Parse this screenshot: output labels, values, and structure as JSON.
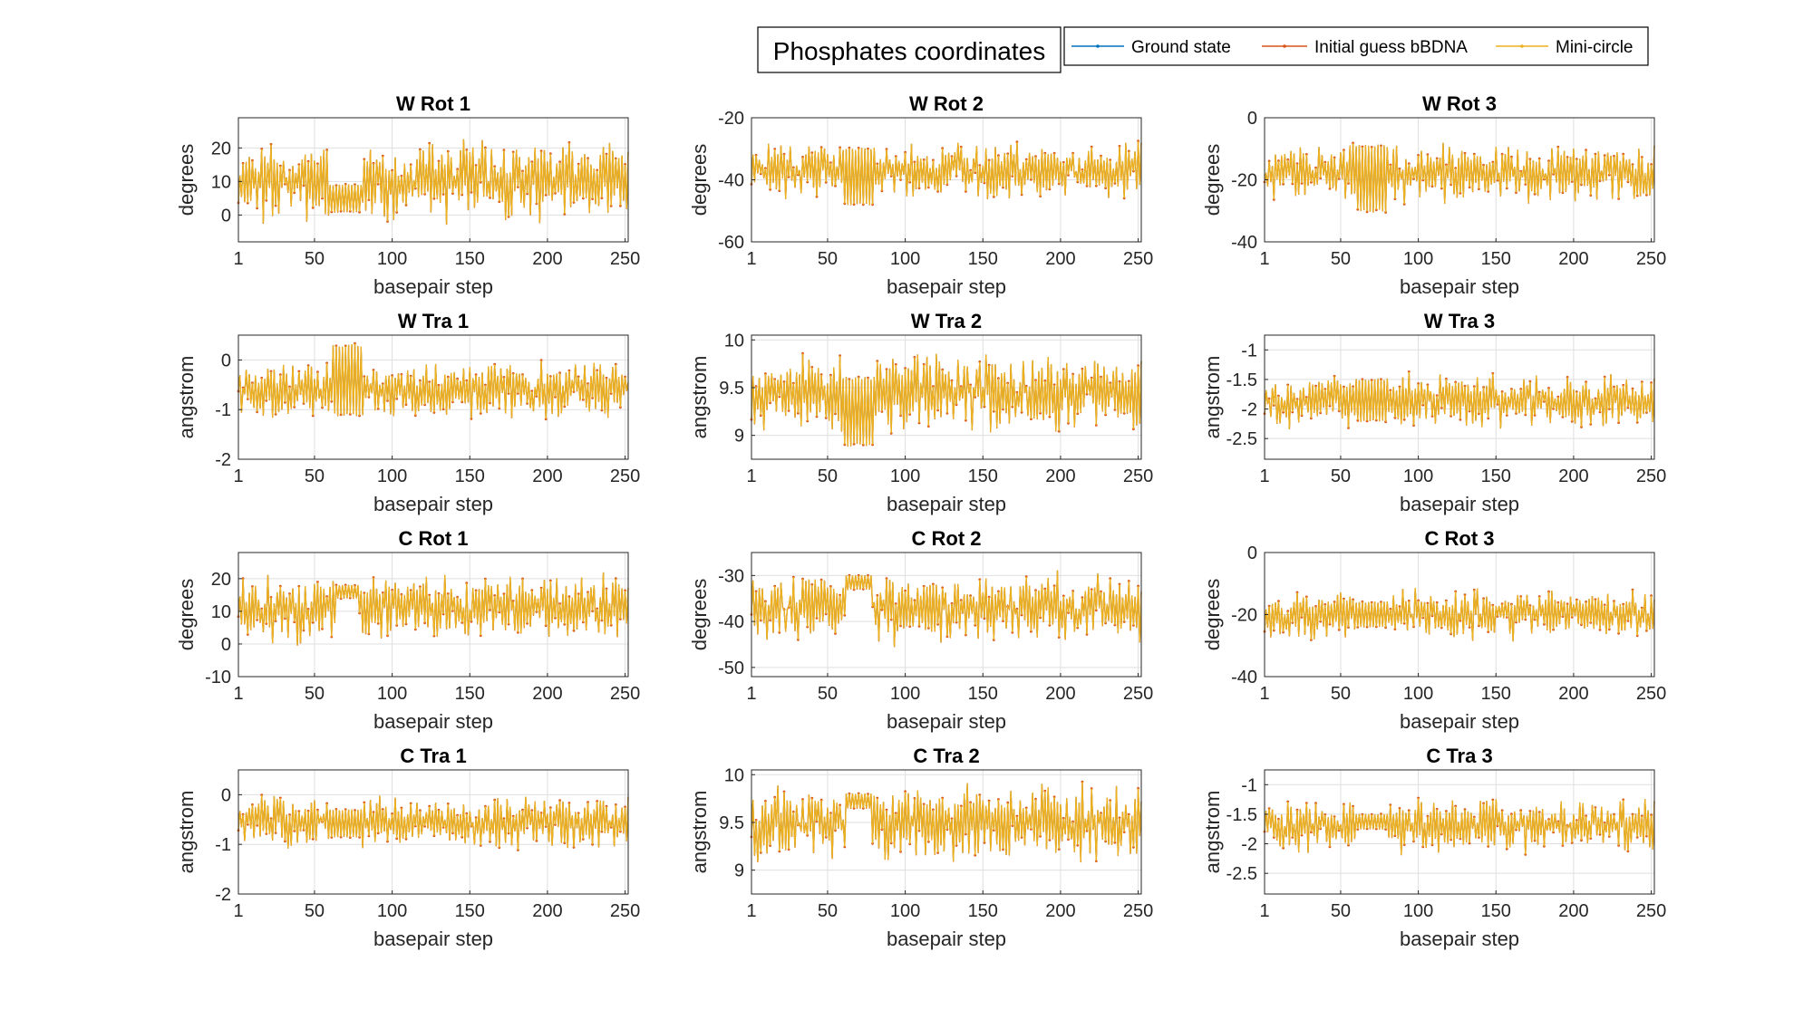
{
  "figure": {
    "suptitle": "Phosphates coordinates",
    "legend": [
      {
        "name": "Ground state",
        "color": "#0072BD"
      },
      {
        "name": "Initial guess bBDNA",
        "color": "#D95319"
      },
      {
        "name": "Mini-circle",
        "color": "#EDB120"
      }
    ]
  },
  "chart_data": [
    {
      "type": "line",
      "title": "W Rot 1",
      "xlabel": "basepair step",
      "ylabel": "degrees",
      "xlim": [
        1,
        252
      ],
      "ylim": [
        -8,
        29
      ],
      "xticks": [
        1,
        50,
        100,
        150,
        200,
        250
      ],
      "yticks": [
        0,
        10,
        20
      ],
      "grid": true,
      "signal": {
        "center": 10,
        "amplitude": 9,
        "seed": 11,
        "flat_region": [
          60,
          80
        ],
        "flat_low": 1,
        "flat_high": 9
      },
      "series": [
        {
          "name": "Ground state"
        },
        {
          "name": "Initial guess bBDNA"
        },
        {
          "name": "Mini-circle"
        }
      ]
    },
    {
      "type": "line",
      "title": "W Rot 2",
      "xlabel": "basepair step",
      "ylabel": "degrees",
      "xlim": [
        1,
        252
      ],
      "ylim": [
        -60,
        -20
      ],
      "xticks": [
        1,
        50,
        100,
        150,
        200,
        250
      ],
      "yticks": [
        -60,
        -40,
        -20
      ],
      "grid": true,
      "signal": {
        "center": -37,
        "amplitude": 7,
        "seed": 23,
        "flat_region": [
          60,
          80
        ],
        "flat_low": -48,
        "flat_high": -30
      },
      "series": [
        {
          "name": "Ground state"
        },
        {
          "name": "Initial guess bBDNA"
        },
        {
          "name": "Mini-circle"
        }
      ]
    },
    {
      "type": "line",
      "title": "W Rot 3",
      "xlabel": "basepair step",
      "ylabel": "degrees",
      "xlim": [
        1,
        252
      ],
      "ylim": [
        -40,
        0
      ],
      "xticks": [
        1,
        50,
        100,
        150,
        200,
        250
      ],
      "yticks": [
        -40,
        -20,
        0
      ],
      "grid": true,
      "signal": {
        "center": -18,
        "amplitude": 7,
        "seed": 37,
        "flat_region": [
          60,
          80
        ],
        "flat_low": -30,
        "flat_high": -9
      },
      "series": [
        {
          "name": "Ground state"
        },
        {
          "name": "Initial guess bBDNA"
        },
        {
          "name": "Mini-circle"
        }
      ]
    },
    {
      "type": "line",
      "title": "W Tra 1",
      "xlabel": "basepair step",
      "ylabel": "angstrom",
      "xlim": [
        1,
        252
      ],
      "ylim": [
        -2,
        0.5
      ],
      "xticks": [
        1,
        50,
        100,
        150,
        200,
        250
      ],
      "yticks": [
        -2,
        -1,
        0
      ],
      "grid": true,
      "signal": {
        "center": -0.6,
        "amplitude": 0.45,
        "seed": 41,
        "flat_region": [
          62,
          80
        ],
        "flat_low": -1.1,
        "flat_high": 0.3
      },
      "series": [
        {
          "name": "Ground state"
        },
        {
          "name": "Initial guess bBDNA"
        },
        {
          "name": "Mini-circle"
        }
      ]
    },
    {
      "type": "line",
      "title": "W Tra 2",
      "xlabel": "basepair step",
      "ylabel": "angstrom",
      "xlim": [
        1,
        252
      ],
      "ylim": [
        8.75,
        10.05
      ],
      "xticks": [
        1,
        50,
        100,
        150,
        200,
        250
      ],
      "yticks": [
        9,
        9.5,
        10
      ],
      "grid": true,
      "signal": {
        "center": 9.45,
        "amplitude": 0.32,
        "seed": 53,
        "flat_region": [
          60,
          80
        ],
        "flat_low": 8.9,
        "flat_high": 9.6
      },
      "series": [
        {
          "name": "Ground state"
        },
        {
          "name": "Initial guess bBDNA"
        },
        {
          "name": "Mini-circle"
        }
      ]
    },
    {
      "type": "line",
      "title": "W Tra 3",
      "xlabel": "basepair step",
      "ylabel": "angstrom",
      "xlim": [
        1,
        252
      ],
      "ylim": [
        -2.85,
        -0.75
      ],
      "xticks": [
        1,
        50,
        100,
        150,
        200,
        250
      ],
      "yticks": [
        -2.5,
        -2,
        -1.5,
        -1
      ],
      "grid": true,
      "signal": {
        "center": -1.85,
        "amplitude": 0.35,
        "seed": 67,
        "flat_region": [
          60,
          80
        ],
        "flat_low": -2.2,
        "flat_high": -1.5
      },
      "series": [
        {
          "name": "Ground state"
        },
        {
          "name": "Initial guess bBDNA"
        },
        {
          "name": "Mini-circle"
        }
      ]
    },
    {
      "type": "line",
      "title": "C Rot 1",
      "xlabel": "basepair step",
      "ylabel": "degrees",
      "xlim": [
        1,
        252
      ],
      "ylim": [
        -10,
        28
      ],
      "xticks": [
        1,
        50,
        100,
        150,
        200,
        250
      ],
      "yticks": [
        -10,
        0,
        10,
        20
      ],
      "grid": true,
      "signal": {
        "center": 11,
        "amplitude": 8,
        "seed": 71,
        "flat_region": [
          64,
          78
        ],
        "flat_low": 14,
        "flat_high": 18
      },
      "series": [
        {
          "name": "Ground state"
        },
        {
          "name": "Initial guess bBDNA"
        },
        {
          "name": "Mini-circle"
        }
      ]
    },
    {
      "type": "line",
      "title": "C Rot 2",
      "xlabel": "basepair step",
      "ylabel": "degrees",
      "xlim": [
        1,
        252
      ],
      "ylim": [
        -52,
        -25
      ],
      "xticks": [
        1,
        50,
        100,
        150,
        200,
        250
      ],
      "yticks": [
        -50,
        -40,
        -30
      ],
      "grid": true,
      "signal": {
        "center": -37,
        "amplitude": 6,
        "seed": 83,
        "flat_region": [
          62,
          78
        ],
        "flat_low": -33,
        "flat_high": -30
      },
      "series": [
        {
          "name": "Ground state"
        },
        {
          "name": "Initial guess bBDNA"
        },
        {
          "name": "Mini-circle"
        }
      ]
    },
    {
      "type": "line",
      "title": "C Rot 3",
      "xlabel": "basepair step",
      "ylabel": "degrees",
      "xlim": [
        1,
        252
      ],
      "ylim": [
        -40,
        0
      ],
      "xticks": [
        1,
        50,
        100,
        150,
        200,
        250
      ],
      "yticks": [
        -40,
        -20,
        0
      ],
      "grid": true,
      "signal": {
        "center": -20,
        "amplitude": 6,
        "seed": 97,
        "flat_region": [
          60,
          80
        ],
        "flat_low": -24,
        "flat_high": -16
      },
      "series": [
        {
          "name": "Ground state"
        },
        {
          "name": "Initial guess bBDNA"
        },
        {
          "name": "Mini-circle"
        }
      ]
    },
    {
      "type": "line",
      "title": "C Tra 1",
      "xlabel": "basepair step",
      "ylabel": "angstrom",
      "xlim": [
        1,
        252
      ],
      "ylim": [
        -2,
        0.5
      ],
      "xticks": [
        1,
        50,
        100,
        150,
        200,
        250
      ],
      "yticks": [
        -2,
        -1,
        0
      ],
      "grid": true,
      "signal": {
        "center": -0.55,
        "amplitude": 0.4,
        "seed": 103,
        "flat_region": [
          60,
          80
        ],
        "flat_low": -0.85,
        "flat_high": -0.3
      },
      "series": [
        {
          "name": "Ground state"
        },
        {
          "name": "Initial guess bBDNA"
        },
        {
          "name": "Mini-circle"
        }
      ]
    },
    {
      "type": "line",
      "title": "C Tra 2",
      "xlabel": "basepair step",
      "ylabel": "angstrom",
      "xlim": [
        1,
        252
      ],
      "ylim": [
        8.75,
        10.05
      ],
      "xticks": [
        1,
        50,
        100,
        150,
        200,
        250
      ],
      "yticks": [
        9,
        9.5,
        10
      ],
      "grid": true,
      "signal": {
        "center": 9.5,
        "amplitude": 0.3,
        "seed": 113,
        "flat_region": [
          62,
          78
        ],
        "flat_low": 9.65,
        "flat_high": 9.8
      },
      "series": [
        {
          "name": "Ground state"
        },
        {
          "name": "Initial guess bBDNA"
        },
        {
          "name": "Mini-circle"
        }
      ]
    },
    {
      "type": "line",
      "title": "C Tra 3",
      "xlabel": "basepair step",
      "ylabel": "angstrom",
      "xlim": [
        1,
        252
      ],
      "ylim": [
        -2.85,
        -0.75
      ],
      "xticks": [
        1,
        50,
        100,
        150,
        200,
        250
      ],
      "yticks": [
        -2.5,
        -2,
        -1.5,
        -1
      ],
      "grid": true,
      "signal": {
        "center": -1.7,
        "amplitude": 0.35,
        "seed": 127,
        "flat_region": [
          60,
          80
        ],
        "flat_low": -1.75,
        "flat_high": -1.5
      },
      "series": [
        {
          "name": "Ground state"
        },
        {
          "name": "Initial guess bBDNA"
        },
        {
          "name": "Mini-circle"
        }
      ]
    }
  ]
}
